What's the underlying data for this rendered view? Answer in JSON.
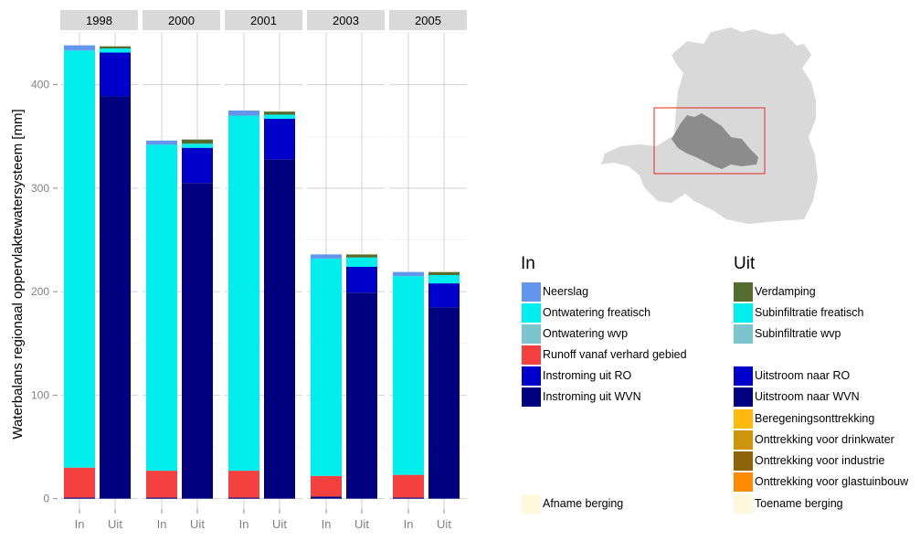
{
  "chart_data": {
    "type": "bar",
    "stacked": true,
    "ylabel": "Waterbalans regionaal oppervlaktewatersysteem [mm]",
    "ylim": [
      0,
      450
    ],
    "y_ticks": [
      0,
      100,
      200,
      300,
      400
    ],
    "x_categories": [
      "In",
      "Uit"
    ],
    "panels": [
      "1998",
      "2000",
      "2001",
      "2003",
      "2005"
    ],
    "grid": true,
    "in_components": [
      {
        "name": "Instroming uit WVN",
        "color": "#000080"
      },
      {
        "name": "Instroming uit RO",
        "color": "#0000CD"
      },
      {
        "name": "Runoff vanaf verhard gebied",
        "color": "#F54040"
      },
      {
        "name": "Ontwatering wvp",
        "color": "#7CC4CE"
      },
      {
        "name": "Ontwatering freatisch",
        "color": "#00EEEE"
      },
      {
        "name": "Neerslag",
        "color": "#6495ED"
      },
      {
        "name": "Afname berging",
        "color": "#FFF8DC"
      }
    ],
    "uit_components": [
      {
        "name": "Uitstroom naar WVN",
        "color": "#000080"
      },
      {
        "name": "Uitstroom naar RO",
        "color": "#0000CD"
      },
      {
        "name": "Subinfiltratie wvp",
        "color": "#7CC4CE"
      },
      {
        "name": "Subinfiltratie freatisch",
        "color": "#00EEEE"
      },
      {
        "name": "Verdamping",
        "color": "#556B2F"
      },
      {
        "name": "Beregeningsonttrekking",
        "color": "#FFB90F"
      },
      {
        "name": "Onttrekking voor drinkwater",
        "color": "#CD950C"
      },
      {
        "name": "Onttrekking voor industrie",
        "color": "#8B6508"
      },
      {
        "name": "Onttrekking voor glastuinbouw",
        "color": "#FF8C00"
      },
      {
        "name": "Toename berging",
        "color": "#FFF8DC"
      }
    ],
    "data": {
      "1998": {
        "In": {
          "Instroming uit WVN": 1,
          "Instroming uit RO": 0,
          "Runoff vanaf verhard gebied": 29,
          "Ontwatering wvp": 0,
          "Ontwatering freatisch": 403,
          "Neerslag": 5,
          "Afname berging": 0
        },
        "Uit": {
          "Uitstroom naar WVN": 389,
          "Uitstroom naar RO": 42,
          "Subinfiltratie wvp": 0,
          "Subinfiltratie freatisch": 4,
          "Verdamping": 2,
          "Beregeningsonttrekking": 0,
          "Onttrekking voor drinkwater": 0,
          "Onttrekking voor industrie": 0,
          "Onttrekking voor glastuinbouw": 0,
          "Toename berging": 0
        }
      },
      "2000": {
        "In": {
          "Instroming uit WVN": 1,
          "Instroming uit RO": 0,
          "Runoff vanaf verhard gebied": 26,
          "Ontwatering wvp": 0,
          "Ontwatering freatisch": 315,
          "Neerslag": 4,
          "Afname berging": 0
        },
        "Uit": {
          "Uitstroom naar WVN": 305,
          "Uitstroom naar RO": 34,
          "Subinfiltratie wvp": 0,
          "Subinfiltratie freatisch": 4,
          "Verdamping": 4,
          "Beregeningsonttrekking": 0,
          "Onttrekking voor drinkwater": 0,
          "Onttrekking voor industrie": 0,
          "Onttrekking voor glastuinbouw": 0,
          "Toename berging": 0
        }
      },
      "2001": {
        "In": {
          "Instroming uit WVN": 1,
          "Instroming uit RO": 0,
          "Runoff vanaf verhard gebied": 26,
          "Ontwatering wvp": 0,
          "Ontwatering freatisch": 343,
          "Neerslag": 5,
          "Afname berging": 0
        },
        "Uit": {
          "Uitstroom naar WVN": 328,
          "Uitstroom naar RO": 39,
          "Subinfiltratie wvp": 0,
          "Subinfiltratie freatisch": 4,
          "Verdamping": 3,
          "Beregeningsonttrekking": 0,
          "Onttrekking voor drinkwater": 0,
          "Onttrekking voor industrie": 0,
          "Onttrekking voor glastuinbouw": 0,
          "Toename berging": 1
        }
      },
      "2003": {
        "In": {
          "Instroming uit WVN": 2,
          "Instroming uit RO": 0,
          "Runoff vanaf verhard gebied": 20,
          "Ontwatering wvp": 0,
          "Ontwatering freatisch": 210,
          "Neerslag": 4,
          "Afname berging": 0
        },
        "Uit": {
          "Uitstroom naar WVN": 199,
          "Uitstroom naar RO": 25,
          "Subinfiltratie wvp": 0,
          "Subinfiltratie freatisch": 9,
          "Verdamping": 3,
          "Beregeningsonttrekking": 0,
          "Onttrekking voor drinkwater": 0,
          "Onttrekking voor industrie": 0,
          "Onttrekking voor glastuinbouw": 0,
          "Toename berging": 1
        }
      },
      "2005": {
        "In": {
          "Instroming uit WVN": 1,
          "Instroming uit RO": 0,
          "Runoff vanaf verhard gebied": 22,
          "Ontwatering wvp": 0,
          "Ontwatering freatisch": 192,
          "Neerslag": 4,
          "Afname berging": 0
        },
        "Uit": {
          "Uitstroom naar WVN": 185,
          "Uitstroom naar RO": 23,
          "Subinfiltratie wvp": 0,
          "Subinfiltratie freatisch": 8,
          "Verdamping": 3,
          "Beregeningsonttrekking": 0,
          "Onttrekking voor drinkwater": 0,
          "Onttrekking voor industrie": 0,
          "Onttrekking voor glastuinbouw": 0,
          "Toename berging": 1
        }
      }
    }
  },
  "legend": {
    "in_title": "In",
    "uit_title": "Uit",
    "in_items": [
      {
        "label": "Neerslag",
        "color": "#6495ED"
      },
      {
        "label": "Ontwatering freatisch",
        "color": "#00EEEE"
      },
      {
        "label": "Ontwatering wvp",
        "color": "#7CC4CE"
      },
      {
        "label": "Runoff vanaf verhard gebied",
        "color": "#F54040"
      },
      {
        "label": "Instroming uit RO",
        "color": "#0000CD"
      },
      {
        "label": "Instroming uit WVN",
        "color": "#000080"
      },
      {
        "label": "Afname berging",
        "color": "#FFF8DC"
      }
    ],
    "uit_items": [
      {
        "label": "Verdamping",
        "color": "#556B2F"
      },
      {
        "label": "Subinfiltratie freatisch",
        "color": "#00EEEE"
      },
      {
        "label": "Subinfiltratie wvp",
        "color": "#7CC4CE"
      },
      {
        "label": "Uitstroom naar RO",
        "color": "#0000CD"
      },
      {
        "label": "Uitstroom naar WVN",
        "color": "#000080"
      },
      {
        "label": "Beregeningsonttrekking",
        "color": "#FFB90F"
      },
      {
        "label": "Onttrekking voor drinkwater",
        "color": "#CD950C"
      },
      {
        "label": "Onttrekking voor industrie",
        "color": "#8B6508"
      },
      {
        "label": "Onttrekking voor glastuinbouw",
        "color": "#FF8C00"
      },
      {
        "label": "Toename berging",
        "color": "#FFF8DC"
      }
    ]
  },
  "map": {
    "land_color": "#D9D9D9",
    "region_color": "#8C8C8C",
    "box_color": "#E8281E"
  }
}
